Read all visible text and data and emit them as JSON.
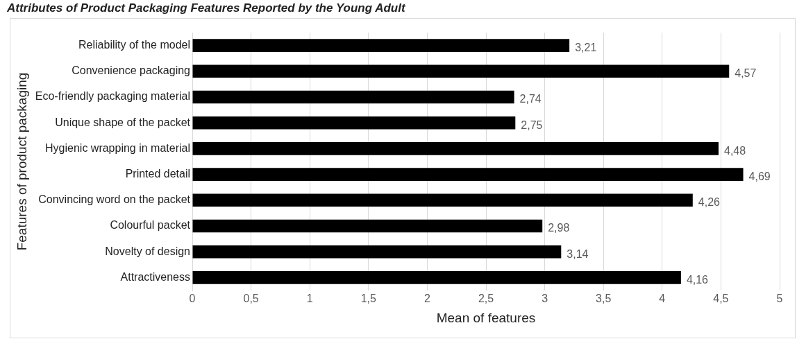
{
  "chart_data": {
    "type": "bar",
    "orientation": "horizontal",
    "title": "Attributes of Product Packaging Features Reported by the Young Adult",
    "xlabel": "Mean of features",
    "ylabel": "Features of product packaging",
    "categories": [
      "Reliability of the model",
      "Convenience packaging",
      "Eco-friendly packaging material",
      "Unique shape of the packet",
      "Hygienic wrapping in material",
      "Printed detail",
      "Convincing word on the packet",
      "Colourful packet",
      "Novelty of design",
      "Attractiveness"
    ],
    "values": [
      3.21,
      4.57,
      2.74,
      2.75,
      4.48,
      4.69,
      4.26,
      2.98,
      3.14,
      4.16
    ],
    "value_labels": [
      "3,21",
      "4,57",
      "2,74",
      "2,75",
      "4,48",
      "4,69",
      "4,26",
      "2,98",
      "3,14",
      "4,16"
    ],
    "color": "#000000",
    "xlim": [
      0,
      5
    ],
    "xticks": [
      0,
      {
        "value": 0.5,
        "label": "0,5"
      },
      1,
      {
        "value": 1.5,
        "label": "1,5"
      },
      2,
      {
        "value": 2.5,
        "label": "2,5"
      },
      3,
      {
        "value": 3.5,
        "label": "3,5"
      },
      4,
      {
        "value": 4.5,
        "label": "4,5"
      },
      5
    ],
    "grid": "x"
  }
}
